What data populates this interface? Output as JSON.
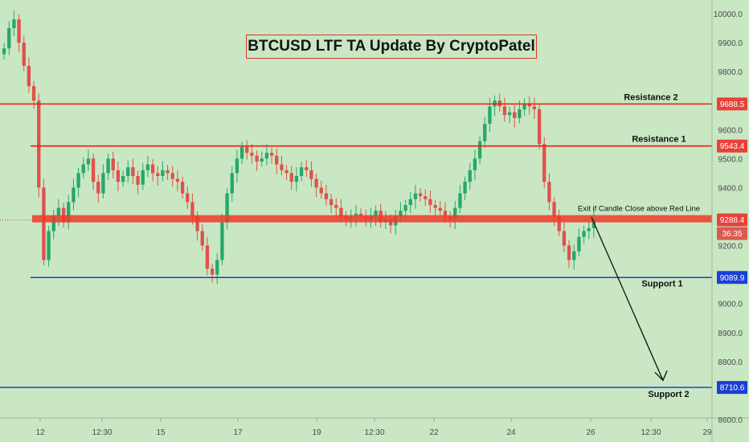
{
  "title": "BTCUSD LTF TA Update By CryptoPatel",
  "colors": {
    "background": "#c9e7c3",
    "resistance": "#f01a10",
    "support": "#1530d8",
    "zone": "#f03a2a",
    "up": "#26a86a",
    "down": "#e0514a",
    "axis_text": "#4a4a4a",
    "price_tag": "#e8413a",
    "support_tag": "#1a3fd6",
    "timer_tag": "#d95a4e"
  },
  "price_axis": {
    "ticks": [
      "10000.0",
      "9900.0",
      "9800.0",
      "9700.0",
      "9600.0",
      "9500.0",
      "9400.0",
      "9300.0",
      "9200.0",
      "9100.0",
      "9000.0",
      "8900.0",
      "8800.0",
      "8700.0",
      "8600.0"
    ]
  },
  "time_axis": {
    "ticks": [
      "12",
      "12:30",
      "15",
      "17",
      "19",
      "12:30",
      "22",
      "24",
      "26",
      "12:30",
      "29"
    ]
  },
  "levels": {
    "resistance_2": {
      "label": "Resistance 2",
      "price": 9688.5,
      "tag": "9688.5"
    },
    "resistance_1": {
      "label": "Resistance 1",
      "price": 9543.4,
      "tag": "9543.4"
    },
    "support_1": {
      "label": "Support 1",
      "price": 9089.9,
      "tag": "9089.9"
    },
    "support_2": {
      "label": "Support 2",
      "price": 8710.6,
      "tag": "8710.6"
    }
  },
  "zone": {
    "label": "Exit if Candle Close above Red Line",
    "price_low": 9280,
    "price_high": 9305
  },
  "current_price": {
    "price": 9288.4,
    "tag": "9288.4",
    "timer": "36:35"
  },
  "chart_data": {
    "type": "candlestick",
    "title": "BTCUSD LTF TA Update By CryptoPatel",
    "ylim": [
      8600,
      10000
    ],
    "candles_close": [
      9880,
      9950,
      9980,
      9900,
      9820,
      9750,
      9700,
      9400,
      9150,
      9250,
      9300,
      9330,
      9280,
      9350,
      9400,
      9450,
      9480,
      9500,
      9420,
      9380,
      9450,
      9500,
      9460,
      9420,
      9440,
      9470,
      9440,
      9410,
      9460,
      9480,
      9450,
      9440,
      9460,
      9450,
      9430,
      9420,
      9380,
      9350,
      9300,
      9250,
      9200,
      9120,
      9100,
      9150,
      9280,
      9380,
      9450,
      9500,
      9540,
      9520,
      9510,
      9490,
      9500,
      9520,
      9510,
      9480,
      9460,
      9450,
      9420,
      9440,
      9470,
      9460,
      9430,
      9400,
      9380,
      9360,
      9340,
      9330,
      9300,
      9290,
      9300,
      9310,
      9300,
      9290,
      9300,
      9320,
      9280,
      9290,
      9270,
      9300,
      9320,
      9340,
      9360,
      9380,
      9370,
      9360,
      9340,
      9330,
      9320,
      9300,
      9290,
      9330,
      9380,
      9420,
      9460,
      9500,
      9560,
      9620,
      9680,
      9700,
      9680,
      9650,
      9660,
      9640,
      9670,
      9690,
      9680,
      9670,
      9550,
      9420,
      9350,
      9300,
      9250,
      9200,
      9150,
      9180,
      9230,
      9250,
      9260,
      9290
    ],
    "levels": [
      {
        "name": "Resistance 2",
        "value": 9688.5
      },
      {
        "name": "Resistance 1",
        "value": 9543.4
      },
      {
        "name": "Support 1",
        "value": 9089.9
      },
      {
        "name": "Support 2",
        "value": 8710.6
      }
    ],
    "x_ticks": [
      "12",
      "12:30",
      "15",
      "17",
      "19",
      "12:30",
      "22",
      "24",
      "26",
      "12:30",
      "29"
    ],
    "y_ticks": [
      10000,
      9900,
      9800,
      9700,
      9600,
      9500,
      9400,
      9300,
      9200,
      9100,
      9000,
      8900,
      8800,
      8700,
      8600
    ]
  }
}
